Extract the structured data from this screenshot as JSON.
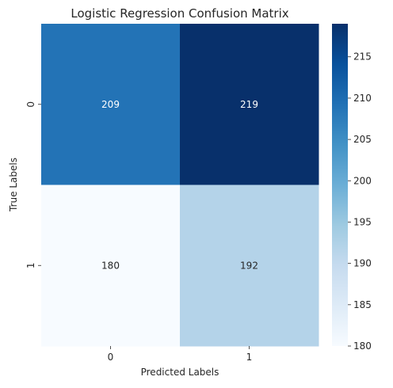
{
  "chart_data": {
    "type": "heatmap",
    "title": "Logistic Regression Confusion Matrix",
    "xlabel": "Predicted Labels",
    "ylabel": "True Labels",
    "x_categories": [
      "0",
      "1"
    ],
    "y_categories": [
      "0",
      "1"
    ],
    "values": [
      [
        209,
        219
      ],
      [
        180,
        192
      ]
    ],
    "cell_labels": [
      [
        "209",
        "219"
      ],
      [
        "180",
        "192"
      ]
    ],
    "colormap": "Blues",
    "colorbar": {
      "vmin": 180,
      "vmax": 219,
      "ticks": [
        180,
        185,
        190,
        195,
        200,
        205,
        210,
        215
      ],
      "tick_labels": [
        "180",
        "185",
        "190",
        "195",
        "200",
        "205",
        "210",
        "215"
      ]
    },
    "grid": false,
    "colors": {
      "low": "#f7fbff",
      "high": "#08306b",
      "text_on_dark": "#ffffff",
      "text_on_light": "#262626"
    }
  }
}
